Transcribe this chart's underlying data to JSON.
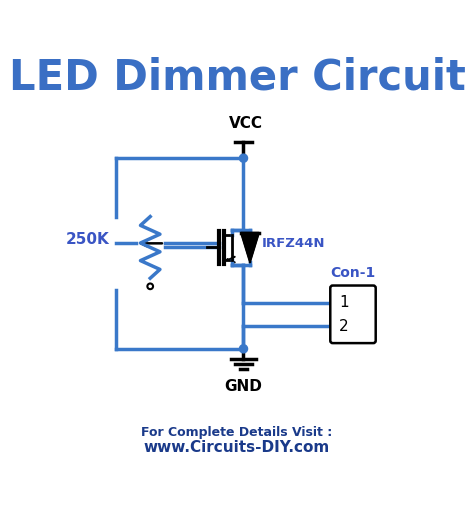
{
  "title": "LED Dimmer Circuit",
  "title_color": "#3a6fc4",
  "title_fontsize": 30,
  "circuit_color": "#3a78c9",
  "text_color": "#3a55c4",
  "bg_color": "#ffffff",
  "label_250K": "250K",
  "label_VCC": "VCC",
  "label_GND": "GND",
  "label_IRFZ44N": "IRFZ44N",
  "label_Con1": "Con-1",
  "footer_line1": "For Complete Details Visit :",
  "footer_line2": "www.Circuits-DIY.com",
  "footer_color": "#1a3a8a"
}
